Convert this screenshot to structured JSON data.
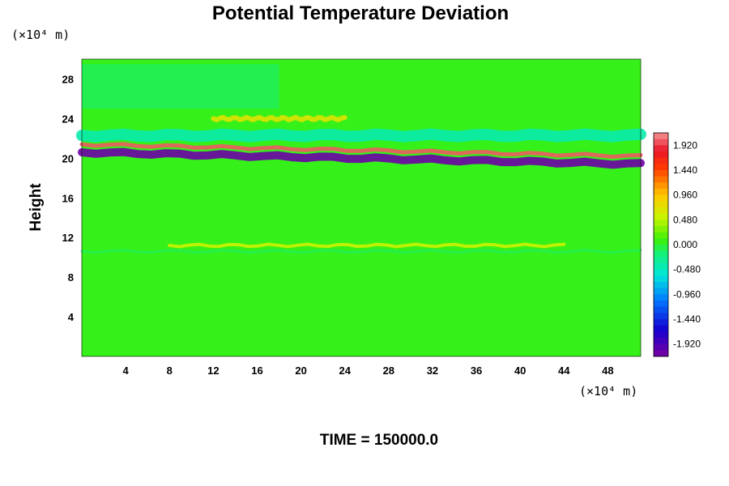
{
  "chart_data": {
    "type": "heatmap",
    "title": "Potential Temperature Deviation",
    "ylabel": "Height",
    "y_unit": "(×10⁴ m)",
    "x_unit": "(×10⁴ m)",
    "footer": "TIME = 150000.0",
    "xlim": [
      0,
      51
    ],
    "ylim": [
      0,
      30
    ],
    "x_ticks": [
      "4",
      "8",
      "12",
      "16",
      "20",
      "24",
      "28",
      "32",
      "36",
      "40",
      "44",
      "48"
    ],
    "y_ticks": [
      "4",
      "8",
      "12",
      "16",
      "20",
      "24",
      "28"
    ],
    "colorbar": {
      "range": [
        -2.16,
        2.16
      ],
      "labels": [
        "1.920",
        "1.440",
        "0.960",
        "0.480",
        "0.000",
        "-0.480",
        "-0.960",
        "-1.440",
        "-1.920"
      ]
    },
    "features": [
      {
        "name": "background",
        "value": 0.05
      },
      {
        "name": "cool-layer-upper",
        "y": 22.3,
        "x_range": [
          0,
          51
        ],
        "value": -0.4
      },
      {
        "name": "warm-band-upper",
        "y": 24.0,
        "x_range": [
          12,
          24
        ],
        "value": 0.7
      },
      {
        "name": "cold-core",
        "y": 20.6,
        "x_range": [
          0,
          51
        ],
        "value": -2.1
      },
      {
        "name": "warm-core",
        "y": 21.4,
        "x_range": [
          0,
          51
        ],
        "value": 2.0
      },
      {
        "name": "warm-strip-lower",
        "y": 11.2,
        "x_range": [
          8,
          44
        ],
        "value": 0.55
      },
      {
        "name": "cool-strip-lower",
        "y": 10.6,
        "x_range": [
          0,
          51
        ],
        "value": -0.15
      }
    ]
  }
}
